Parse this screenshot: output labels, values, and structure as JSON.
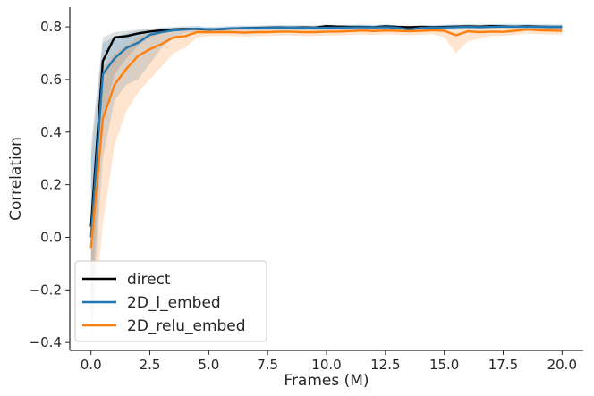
{
  "chart_data": {
    "type": "line",
    "title": "",
    "xlabel": "Frames (M)",
    "ylabel": "Correlation",
    "xlim": [
      -0.9,
      20.9
    ],
    "ylim": [
      -0.43,
      0.875
    ],
    "xticks": [
      0.0,
      2.5,
      5.0,
      7.5,
      10.0,
      12.5,
      15.0,
      17.5,
      20.0
    ],
    "xtick_labels": [
      "0.0",
      "2.5",
      "5.0",
      "7.5",
      "10.0",
      "12.5",
      "15.0",
      "17.5",
      "20.0"
    ],
    "yticks": [
      -0.4,
      -0.2,
      0.0,
      0.2,
      0.4,
      0.6,
      0.8
    ],
    "ytick_labels": [
      "−0.4",
      "−0.2",
      "0.0",
      "0.2",
      "0.4",
      "0.6",
      "0.8"
    ],
    "grid": false,
    "legend": "lower-left",
    "x": [
      0.0,
      0.5,
      1.0,
      1.5,
      2.0,
      2.5,
      3.0,
      3.5,
      4.0,
      4.5,
      5.0,
      5.5,
      6.0,
      6.5,
      7.0,
      7.5,
      8.0,
      8.5,
      9.0,
      9.5,
      10.0,
      10.5,
      11.0,
      11.5,
      12.0,
      12.5,
      13.0,
      13.5,
      14.0,
      14.5,
      15.0,
      15.5,
      16.0,
      16.5,
      17.0,
      17.5,
      18.0,
      18.5,
      19.0,
      19.5,
      20.0
    ],
    "series": [
      {
        "name": "direct",
        "color": "#000000",
        "band_color": "#666666",
        "values": [
          0.04,
          0.67,
          0.76,
          0.765,
          0.775,
          0.782,
          0.787,
          0.79,
          0.792,
          0.792,
          0.79,
          0.791,
          0.794,
          0.795,
          0.796,
          0.797,
          0.798,
          0.797,
          0.798,
          0.797,
          0.803,
          0.801,
          0.8,
          0.8,
          0.799,
          0.802,
          0.8,
          0.799,
          0.8,
          0.799,
          0.8,
          0.801,
          0.802,
          0.801,
          0.803,
          0.802,
          0.801,
          0.802,
          0.801,
          0.8,
          0.8
        ],
        "lower": [
          -0.3,
          0.45,
          0.62,
          0.68,
          0.73,
          0.76,
          0.775,
          0.782,
          0.785,
          0.786,
          0.784,
          0.785,
          0.788,
          0.789,
          0.79,
          0.791,
          0.792,
          0.791,
          0.792,
          0.791,
          0.797,
          0.795,
          0.794,
          0.794,
          0.793,
          0.796,
          0.794,
          0.793,
          0.794,
          0.793,
          0.794,
          0.795,
          0.796,
          0.795,
          0.797,
          0.796,
          0.795,
          0.796,
          0.795,
          0.794,
          0.794
        ],
        "upper": [
          0.35,
          0.76,
          0.78,
          0.785,
          0.79,
          0.792,
          0.795,
          0.797,
          0.798,
          0.798,
          0.796,
          0.797,
          0.8,
          0.801,
          0.802,
          0.803,
          0.804,
          0.803,
          0.804,
          0.803,
          0.809,
          0.807,
          0.806,
          0.806,
          0.805,
          0.808,
          0.806,
          0.805,
          0.806,
          0.805,
          0.806,
          0.807,
          0.808,
          0.807,
          0.809,
          0.808,
          0.807,
          0.808,
          0.807,
          0.806,
          0.806
        ]
      },
      {
        "name": "2D_l_embed",
        "color": "#1f77b4",
        "band_color": "#1f77b4",
        "values": [
          0.0,
          0.62,
          0.68,
          0.72,
          0.74,
          0.77,
          0.78,
          0.787,
          0.79,
          0.793,
          0.79,
          0.792,
          0.794,
          0.795,
          0.795,
          0.796,
          0.797,
          0.797,
          0.796,
          0.796,
          0.797,
          0.797,
          0.798,
          0.799,
          0.798,
          0.799,
          0.797,
          0.79,
          0.796,
          0.797,
          0.798,
          0.799,
          0.8,
          0.799,
          0.8,
          0.801,
          0.801,
          0.8,
          0.8,
          0.8,
          0.8
        ],
        "lower": [
          -0.38,
          0.3,
          0.52,
          0.58,
          0.6,
          0.66,
          0.72,
          0.76,
          0.775,
          0.782,
          0.78,
          0.782,
          0.784,
          0.785,
          0.785,
          0.786,
          0.787,
          0.787,
          0.786,
          0.786,
          0.787,
          0.787,
          0.788,
          0.789,
          0.788,
          0.789,
          0.787,
          0.78,
          0.786,
          0.787,
          0.788,
          0.789,
          0.79,
          0.789,
          0.79,
          0.791,
          0.791,
          0.79,
          0.79,
          0.79,
          0.79
        ],
        "upper": [
          0.3,
          0.74,
          0.76,
          0.775,
          0.785,
          0.792,
          0.797,
          0.8,
          0.802,
          0.804,
          0.8,
          0.802,
          0.804,
          0.805,
          0.805,
          0.806,
          0.807,
          0.807,
          0.806,
          0.806,
          0.807,
          0.807,
          0.808,
          0.809,
          0.808,
          0.809,
          0.807,
          0.8,
          0.806,
          0.807,
          0.808,
          0.809,
          0.81,
          0.809,
          0.81,
          0.811,
          0.811,
          0.81,
          0.81,
          0.81,
          0.81
        ]
      },
      {
        "name": "2D_relu_embed",
        "color": "#ff7f0e",
        "band_color": "#ff7f0e",
        "values": [
          -0.04,
          0.45,
          0.58,
          0.64,
          0.69,
          0.715,
          0.735,
          0.76,
          0.765,
          0.78,
          0.78,
          0.78,
          0.78,
          0.778,
          0.78,
          0.78,
          0.782,
          0.782,
          0.78,
          0.78,
          0.782,
          0.782,
          0.784,
          0.786,
          0.784,
          0.786,
          0.785,
          0.783,
          0.785,
          0.787,
          0.785,
          0.768,
          0.783,
          0.78,
          0.782,
          0.781,
          0.785,
          0.79,
          0.787,
          0.786,
          0.785
        ],
        "lower": [
          -0.42,
          0.05,
          0.35,
          0.48,
          0.55,
          0.6,
          0.65,
          0.7,
          0.72,
          0.76,
          0.765,
          0.765,
          0.765,
          0.763,
          0.765,
          0.765,
          0.767,
          0.767,
          0.765,
          0.765,
          0.767,
          0.767,
          0.769,
          0.771,
          0.769,
          0.771,
          0.77,
          0.768,
          0.77,
          0.772,
          0.76,
          0.7,
          0.745,
          0.755,
          0.765,
          0.766,
          0.77,
          0.775,
          0.772,
          0.771,
          0.77
        ],
        "upper": [
          0.05,
          0.64,
          0.7,
          0.73,
          0.76,
          0.775,
          0.785,
          0.79,
          0.792,
          0.795,
          0.793,
          0.793,
          0.793,
          0.791,
          0.793,
          0.793,
          0.795,
          0.795,
          0.793,
          0.793,
          0.795,
          0.795,
          0.797,
          0.799,
          0.797,
          0.799,
          0.798,
          0.796,
          0.798,
          0.8,
          0.798,
          0.792,
          0.797,
          0.795,
          0.796,
          0.795,
          0.798,
          0.802,
          0.8,
          0.799,
          0.798
        ]
      }
    ]
  }
}
